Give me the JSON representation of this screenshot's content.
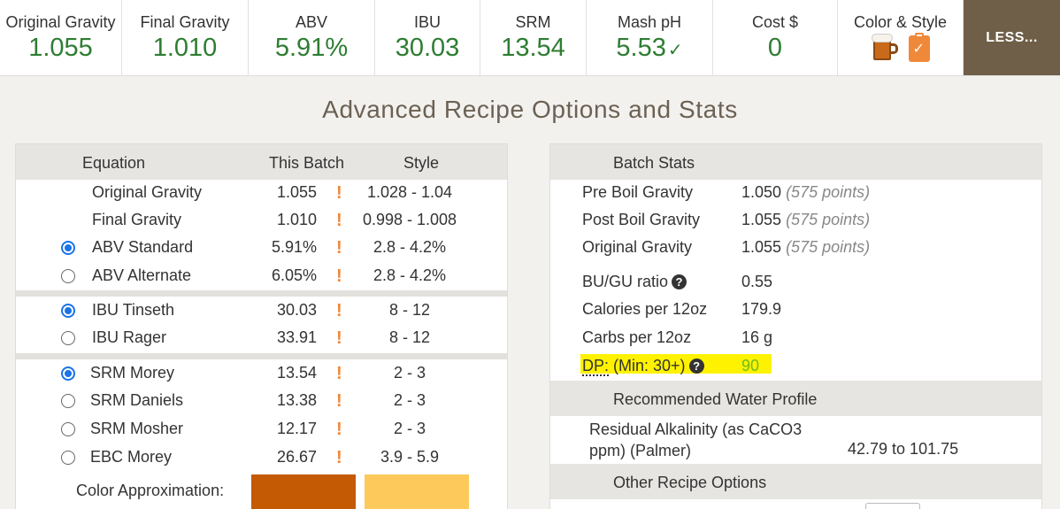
{
  "stats": [
    {
      "label": "Original Gravity",
      "value": "1.055"
    },
    {
      "label": "Final Gravity",
      "value": "1.010"
    },
    {
      "label": "ABV",
      "value": "5.91%"
    },
    {
      "label": "IBU",
      "value": "30.03"
    },
    {
      "label": "SRM",
      "value": "13.54"
    },
    {
      "label": "Mash pH",
      "value": "5.53",
      "check": "✓"
    },
    {
      "label": "Cost $",
      "value": "0"
    }
  ],
  "color_style": {
    "label": "Color & Style",
    "icons": [
      "beer-mug-icon",
      "clipboard-check-icon"
    ]
  },
  "less_button": "LESS...",
  "page_heading": "Advanced Recipe Options and Stats",
  "equation_table": {
    "headers": {
      "equation": "Equation",
      "batch": "This Batch",
      "style": "Style"
    },
    "groups": [
      [
        {
          "name": "Original Gravity",
          "batch": "1.055",
          "warn": "!",
          "style": "1.028 - 1.04",
          "radio": null
        },
        {
          "name": "Final Gravity",
          "batch": "1.010",
          "warn": "!",
          "style": "0.998 - 1.008",
          "radio": null
        },
        {
          "name": "ABV Standard",
          "batch": "5.91%",
          "warn": "!",
          "style": "2.8 - 4.2%",
          "radio": true
        },
        {
          "name": "ABV Alternate",
          "batch": "6.05%",
          "warn": "!",
          "style": "2.8 - 4.2%",
          "radio": false
        }
      ],
      [
        {
          "name": "IBU Tinseth",
          "batch": "30.03",
          "warn": "!",
          "style": "8 - 12",
          "radio": true
        },
        {
          "name": "IBU Rager",
          "batch": "33.91",
          "warn": "!",
          "style": "8 - 12",
          "radio": false
        }
      ],
      [
        {
          "name": "SRM Morey",
          "batch": "13.54",
          "warn": "!",
          "style": "2 - 3",
          "radio": true
        },
        {
          "name": "SRM Daniels",
          "batch": "13.38",
          "warn": "!",
          "style": "2 - 3",
          "radio": false
        },
        {
          "name": "SRM Mosher",
          "batch": "12.17",
          "warn": "!",
          "style": "2 - 3",
          "radio": false
        },
        {
          "name": "EBC Morey",
          "batch": "26.67",
          "warn": "!",
          "style": "3.9 - 5.9",
          "radio": false
        }
      ]
    ],
    "color_label": "Color Approximation:",
    "colors": {
      "batch": "#c45a03",
      "style": "#fdc95a"
    }
  },
  "batch_stats": {
    "title": "Batch Stats",
    "rows": [
      {
        "key": "Pre Boil Gravity",
        "value": "1.050",
        "note": "(575 points)"
      },
      {
        "key": "Post Boil Gravity",
        "value": "1.055",
        "note": "(575 points)"
      },
      {
        "key": "Original Gravity",
        "value": "1.055",
        "note": "(575 points)"
      },
      {
        "key": "BU/GU ratio",
        "value": "0.55",
        "help": "?"
      },
      {
        "key": "Calories per 12oz",
        "value": "179.9"
      },
      {
        "key": "Carbs per 12oz",
        "value": "16 g"
      }
    ],
    "dp": {
      "abbr": "DP:",
      "rest": " (Min: 30+)",
      "help": "?",
      "value": "90"
    }
  },
  "water_profile": {
    "title": "Recommended Water Profile",
    "line1": "Residual Alkalinity (as CaCO3",
    "line2": "ppm) (Palmer)",
    "value": "42.79 to 101.75"
  },
  "other_options": {
    "title": "Other Recipe Options"
  }
}
